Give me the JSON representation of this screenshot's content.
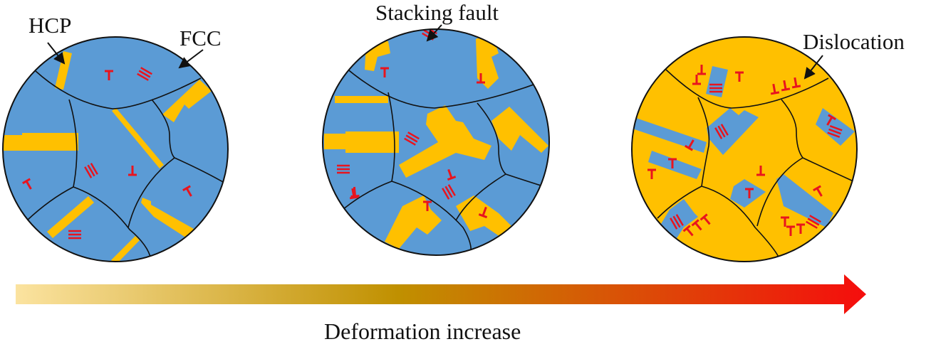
{
  "labels": {
    "hcp": "HCP",
    "fcc": "FCC",
    "stacking_fault": "Stacking fault",
    "dislocation": "Dislocation"
  },
  "caption": "Deformation increase",
  "colors": {
    "fcc_blue": "#5b9bd5",
    "hcp_yellow": "#ffc000",
    "defect_red": "#e8141e",
    "grain_boundary": "#111111",
    "arrow_start": "#fbe3a0",
    "arrow_mid": "#c09000",
    "arrow_end": "#f50d0d"
  }
}
